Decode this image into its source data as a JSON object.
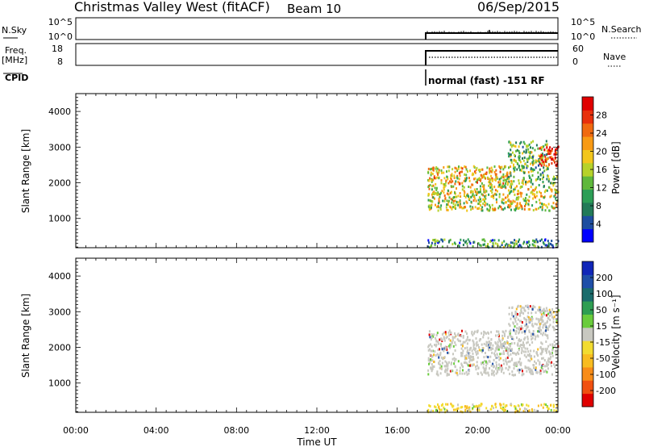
{
  "header": {
    "station": "Christmas Valley West (fitACF)",
    "beam": "Beam 10",
    "date": "06/Sep/2015"
  },
  "top_panels": {
    "nsky": {
      "label": "N.Sky",
      "ticks": [
        "10^5",
        "10^0"
      ],
      "right_ticks": [
        "10^5",
        "10^0"
      ],
      "right_label": "N.Search"
    },
    "freq": {
      "label_line1": "Freq.",
      "label_line2": "[MHz]",
      "ticks": [
        "18",
        "8"
      ],
      "right_ticks": [
        "60",
        "0"
      ],
      "right_label": "Nave"
    },
    "cpid": {
      "label": "CPID",
      "text": "normal (fast) -151 RF"
    }
  },
  "colors": {
    "power": [
      "#0000ff",
      "#1e4ea0",
      "#227a58",
      "#2c9e56",
      "#5fb83c",
      "#b6d22a",
      "#f2c61c",
      "#f89a14",
      "#f06a10",
      "#e8300c",
      "#e00000"
    ],
    "velocity": [
      "#e00000",
      "#f05010",
      "#f88c18",
      "#f8bc20",
      "#f2dc30",
      "#c8c8c0",
      "#6acc3c",
      "#2e9e52",
      "#1a6c6c",
      "#1e4ea8",
      "#1026b8"
    ]
  },
  "chart_data": [
    {
      "type": "heatmap",
      "panel": "power",
      "ylabel": "Slant Range [km]",
      "xlabel": "",
      "ylim": [
        180,
        4500
      ],
      "xlim": [
        0,
        24
      ],
      "yticks": [
        "1000",
        "2000",
        "3000",
        "4000"
      ],
      "colorbar": {
        "label": "Power [dB]",
        "ticks": [
          "4",
          "8",
          "12",
          "16",
          "20",
          "24",
          "28"
        ],
        "range": [
          0,
          32
        ]
      },
      "regions": [
        {
          "t": [
            17.5,
            24.0
          ],
          "r": [
            220,
            450
          ],
          "level": 0.3
        },
        {
          "t": [
            17.5,
            24.0
          ],
          "r": [
            1250,
            1900
          ],
          "level": 0.55
        },
        {
          "t": [
            17.5,
            21.5
          ],
          "r": [
            1900,
            2500
          ],
          "level": 0.6
        },
        {
          "t": [
            20.5,
            24.0
          ],
          "r": [
            1900,
            2200
          ],
          "level": 0.45
        },
        {
          "t": [
            21.5,
            23.5
          ],
          "r": [
            2200,
            3200
          ],
          "level": 0.4
        },
        {
          "t": [
            23.0,
            24.0
          ],
          "r": [
            2500,
            3100
          ],
          "level": 0.9
        }
      ]
    },
    {
      "type": "heatmap",
      "panel": "velocity",
      "ylabel": "Slant Range [km]",
      "xlabel": "Time UT",
      "ylim": [
        180,
        4500
      ],
      "xlim": [
        0,
        24
      ],
      "xticks": [
        "00:00",
        "04:00",
        "08:00",
        "12:00",
        "16:00",
        "20:00",
        "00:00"
      ],
      "yticks": [
        "1000",
        "2000",
        "3000",
        "4000"
      ],
      "colorbar": {
        "label": "Velocity [m s⁻¹]",
        "ticks": [
          "200",
          "100",
          "50",
          "15",
          "-15",
          "-50",
          "-100",
          "-200"
        ]
      },
      "regions": [
        {
          "t": [
            17.5,
            24.0
          ],
          "r": [
            220,
            450
          ],
          "level": 0.3
        },
        {
          "t": [
            17.5,
            24.0
          ],
          "r": [
            1250,
            1900
          ],
          "level": 0.5
        },
        {
          "t": [
            17.5,
            21.5
          ],
          "r": [
            1900,
            2500
          ],
          "level": 0.5
        },
        {
          "t": [
            20.5,
            24.0
          ],
          "r": [
            1900,
            2200
          ],
          "level": 0.5
        },
        {
          "t": [
            21.5,
            23.5
          ],
          "r": [
            2200,
            3200
          ],
          "level": 0.5
        },
        {
          "t": [
            23.0,
            24.0
          ],
          "r": [
            2500,
            3100
          ],
          "level": 0.5
        }
      ]
    }
  ]
}
